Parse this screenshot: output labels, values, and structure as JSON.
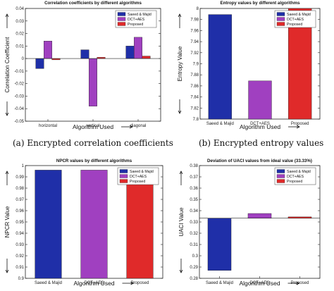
{
  "captions": {
    "a": "(a) Encrypted correlation coefficients",
    "b": "(b) Encrypted entropy values"
  },
  "colors": {
    "saeed_majid": "#1f2fa8",
    "dct_aes": "#a040c0",
    "proposed": "#e02a2a"
  },
  "chart_data": [
    {
      "type": "bar",
      "title": "Correlation coefficients by different algorithms",
      "xlabel": "Algorithm Used",
      "ylabel": "Correlation Coefficient",
      "categories": [
        "horizontal",
        "vertical",
        "diagonal"
      ],
      "ylim": [
        -0.05,
        0.04
      ],
      "yticks": [
        -0.05,
        -0.04,
        -0.03,
        -0.02,
        -0.01,
        0,
        0.01,
        0.02,
        0.03,
        0.04
      ],
      "ytick_labels": [
        "-0.05",
        "-0.04",
        "-0.03",
        "-0.02",
        "-0.01",
        "0",
        "0.01",
        "0.02",
        "0.03",
        "0.04"
      ],
      "legend_position": "top-right",
      "series": [
        {
          "name": "Saeed & Majid",
          "values": [
            -0.008,
            0.007,
            0.01
          ]
        },
        {
          "name": "DCT+AES",
          "values": [
            0.014,
            -0.038,
            0.017
          ]
        },
        {
          "name": "Proposed",
          "values": [
            -0.001,
            0.001,
            0.002
          ]
        }
      ]
    },
    {
      "type": "bar",
      "title": "Entropy values by different algorithms",
      "xlabel": "Algorithm Used",
      "ylabel": "Entropy Value",
      "categories": [
        "Saeed & Majid",
        "DCT+AES",
        "Proposed"
      ],
      "ylim": [
        7.8,
        8.0
      ],
      "yticks": [
        7.8,
        7.82,
        7.84,
        7.86,
        7.88,
        7.9,
        7.92,
        7.94,
        7.96,
        7.98,
        8.0
      ],
      "ytick_labels": [
        "7.8",
        "7.82",
        "7.84",
        "7.86",
        "7.88",
        "7.9",
        "7.92",
        "7.94",
        "7.96",
        "7.98",
        "8"
      ],
      "legend_position": "top-right",
      "series": [
        {
          "name": "Saeed & Majid",
          "values": [
            7.989,
            null,
            null
          ]
        },
        {
          "name": "DCT+AES",
          "values": [
            null,
            7.869,
            null
          ]
        },
        {
          "name": "Proposed",
          "values": [
            null,
            null,
            8.0
          ]
        }
      ]
    },
    {
      "type": "bar",
      "title": "NPCR values by different algorithms",
      "xlabel": "Algorithm Used",
      "ylabel": "NPCR Value",
      "categories": [
        "Saeed & Majid",
        "DCT+AES",
        "Proposed"
      ],
      "ylim": [
        0.9,
        1.0
      ],
      "yticks": [
        0.9,
        0.91,
        0.92,
        0.93,
        0.94,
        0.95,
        0.96,
        0.97,
        0.98,
        0.99,
        1.0
      ],
      "ytick_labels": [
        "0.9",
        "0.91",
        "0.92",
        "0.93",
        "0.94",
        "0.95",
        "0.96",
        "0.97",
        "0.98",
        "0.99",
        "1"
      ],
      "legend_position": "top-right",
      "series": [
        {
          "name": "Saeed & Majid",
          "values": [
            0.996,
            null,
            null
          ]
        },
        {
          "name": "DCT+AES",
          "values": [
            null,
            0.996,
            null
          ]
        },
        {
          "name": "Proposed",
          "values": [
            null,
            null,
            0.996
          ]
        }
      ]
    },
    {
      "type": "bar",
      "title": "Deviation of UACI values from ideal value (33.33%)",
      "xlabel": "Algorithm Used",
      "ylabel": "UACI Value",
      "categories": [
        "Saeed & Majid",
        "DCT+AES",
        "Proposed"
      ],
      "ylim": [
        0.28,
        0.38
      ],
      "yticks": [
        0.28,
        0.29,
        0.3,
        0.31,
        0.32,
        0.33,
        0.34,
        0.35,
        0.36,
        0.37,
        0.38
      ],
      "ytick_labels": [
        "0.28",
        "0.29",
        "0.3",
        "0.31",
        "0.32",
        "0.33",
        "0.34",
        "0.35",
        "0.36",
        "0.37",
        "0.38"
      ],
      "baseline": 0.3333,
      "legend_position": "top-right",
      "series": [
        {
          "name": "Saeed & Majid",
          "values": [
            0.287,
            null,
            null
          ]
        },
        {
          "name": "DCT+AES",
          "values": [
            null,
            0.3375,
            null
          ]
        },
        {
          "name": "Proposed",
          "values": [
            null,
            null,
            0.3345
          ]
        }
      ]
    }
  ]
}
